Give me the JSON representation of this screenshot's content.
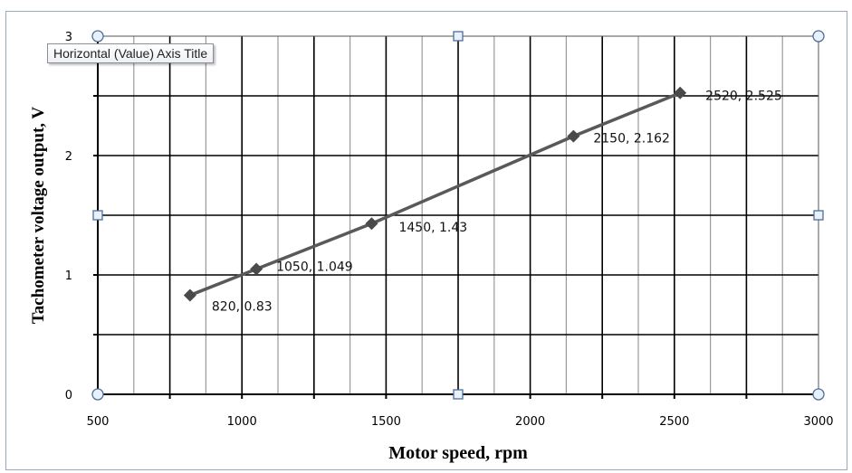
{
  "tooltip": {
    "text": "Horizontal (Value) Axis Title"
  },
  "chart_data": {
    "type": "scatter",
    "title": "",
    "xlabel": "Motor speed, rpm",
    "ylabel": "Tachometer voltage output, V",
    "xlim": [
      500,
      3000
    ],
    "ylim": [
      0,
      3
    ],
    "xticks": [
      500,
      1000,
      1500,
      2000,
      2500,
      3000
    ],
    "yticks": [
      0,
      1,
      2,
      3
    ],
    "grid": true,
    "marker": "diamond",
    "line_color": "#595959",
    "series": [
      {
        "x": [
          820,
          1050,
          1450,
          2150,
          2520
        ],
        "y": [
          0.83,
          1.049,
          1.43,
          2.162,
          2.525
        ]
      }
    ],
    "data_labels": [
      "820, 0.83",
      "1050, 1.049",
      "1450, 1.43",
      "2150, 2.162",
      "2520, 2.525"
    ]
  }
}
